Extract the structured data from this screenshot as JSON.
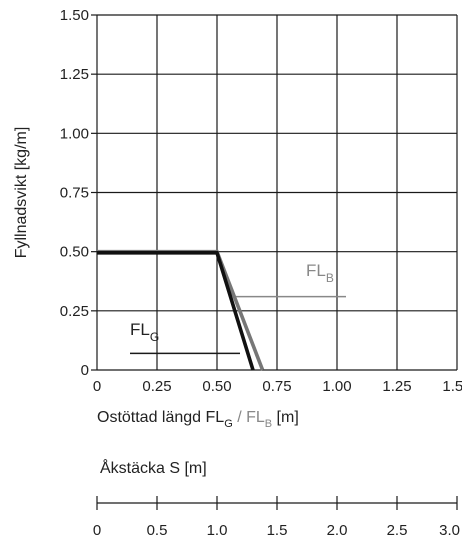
{
  "chart_data": {
    "type": "line",
    "ylabel": "Fyllnadsvikt [kg/m]",
    "xlabel": {
      "prefix": "Ostöttad längd",
      "fl_g_main": "FL",
      "fl_g_sub": "G",
      "slash": "/",
      "fl_b_main": "FL",
      "fl_b_sub": "B",
      "unit": "[m]"
    },
    "xlim": [
      0,
      1.5
    ],
    "ylim": [
      0,
      1.5
    ],
    "x_ticks": [
      "0",
      "0.25",
      "0.50",
      "0.75",
      "1.00",
      "1.25",
      "1.50"
    ],
    "y_ticks": [
      "0",
      "0.25",
      "0.50",
      "0.75",
      "1.00",
      "1.25",
      "1.50"
    ],
    "grid": true,
    "series": [
      {
        "name": "FL_B",
        "color": "#777777",
        "points": [
          [
            0,
            0.5
          ],
          [
            0.5,
            0.5
          ],
          [
            0.69,
            0
          ]
        ]
      },
      {
        "name": "FL_G",
        "color": "#111111",
        "points": [
          [
            0,
            0.495
          ],
          [
            0.5,
            0.495
          ],
          [
            0.65,
            0
          ]
        ]
      }
    ],
    "annotations": {
      "fl_b": {
        "main": "FL",
        "sub": "B",
        "leader_y": 0.31
      },
      "fl_g": {
        "main": "FL",
        "sub": "G",
        "leader_y": 0.07
      }
    },
    "secondary_axis": {
      "label": "Åkstäcka  S [m]",
      "xlim": [
        0,
        3.0
      ],
      "ticks": [
        "0",
        "0.5",
        "1.0",
        "1.5",
        "2.0",
        "2.5",
        "3.0"
      ]
    }
  }
}
